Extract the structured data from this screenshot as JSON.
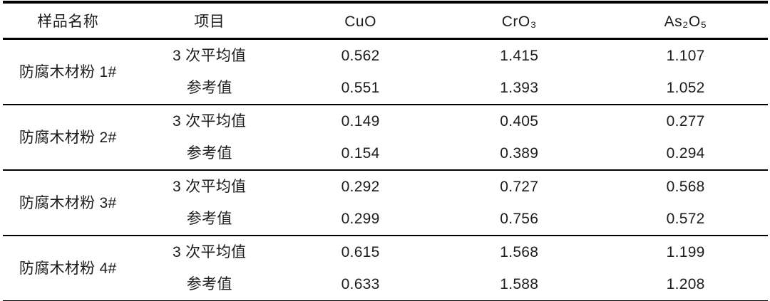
{
  "colors": {
    "background": "#ffffff",
    "text": "#1d1d1d",
    "rule": "#000000"
  },
  "table": {
    "headers": {
      "sample": "样品名称",
      "item": "项目",
      "cuo": "CuO",
      "cro3": "CrO₃",
      "as2o5": "As₂O₅"
    },
    "row_labels": {
      "avg": "3 次平均值",
      "ref": "参考值"
    },
    "groups": [
      {
        "sample": "防腐木材粉 1#",
        "avg": {
          "cuo": "0.562",
          "cro3": "1.415",
          "as2o5": "1.107"
        },
        "ref": {
          "cuo": "0.551",
          "cro3": "1.393",
          "as2o5": "1.052"
        }
      },
      {
        "sample": "防腐木材粉 2#",
        "avg": {
          "cuo": "0.149",
          "cro3": "0.405",
          "as2o5": "0.277"
        },
        "ref": {
          "cuo": "0.154",
          "cro3": "0.389",
          "as2o5": "0.294"
        }
      },
      {
        "sample": "防腐木材粉 3#",
        "avg": {
          "cuo": "0.292",
          "cro3": "0.727",
          "as2o5": "0.568"
        },
        "ref": {
          "cuo": "0.299",
          "cro3": "0.756",
          "as2o5": "0.572"
        }
      },
      {
        "sample": "防腐木材粉 4#",
        "avg": {
          "cuo": "0.615",
          "cro3": "1.568",
          "as2o5": "1.199"
        },
        "ref": {
          "cuo": "0.633",
          "cro3": "1.588",
          "as2o5": "1.208"
        }
      }
    ]
  }
}
